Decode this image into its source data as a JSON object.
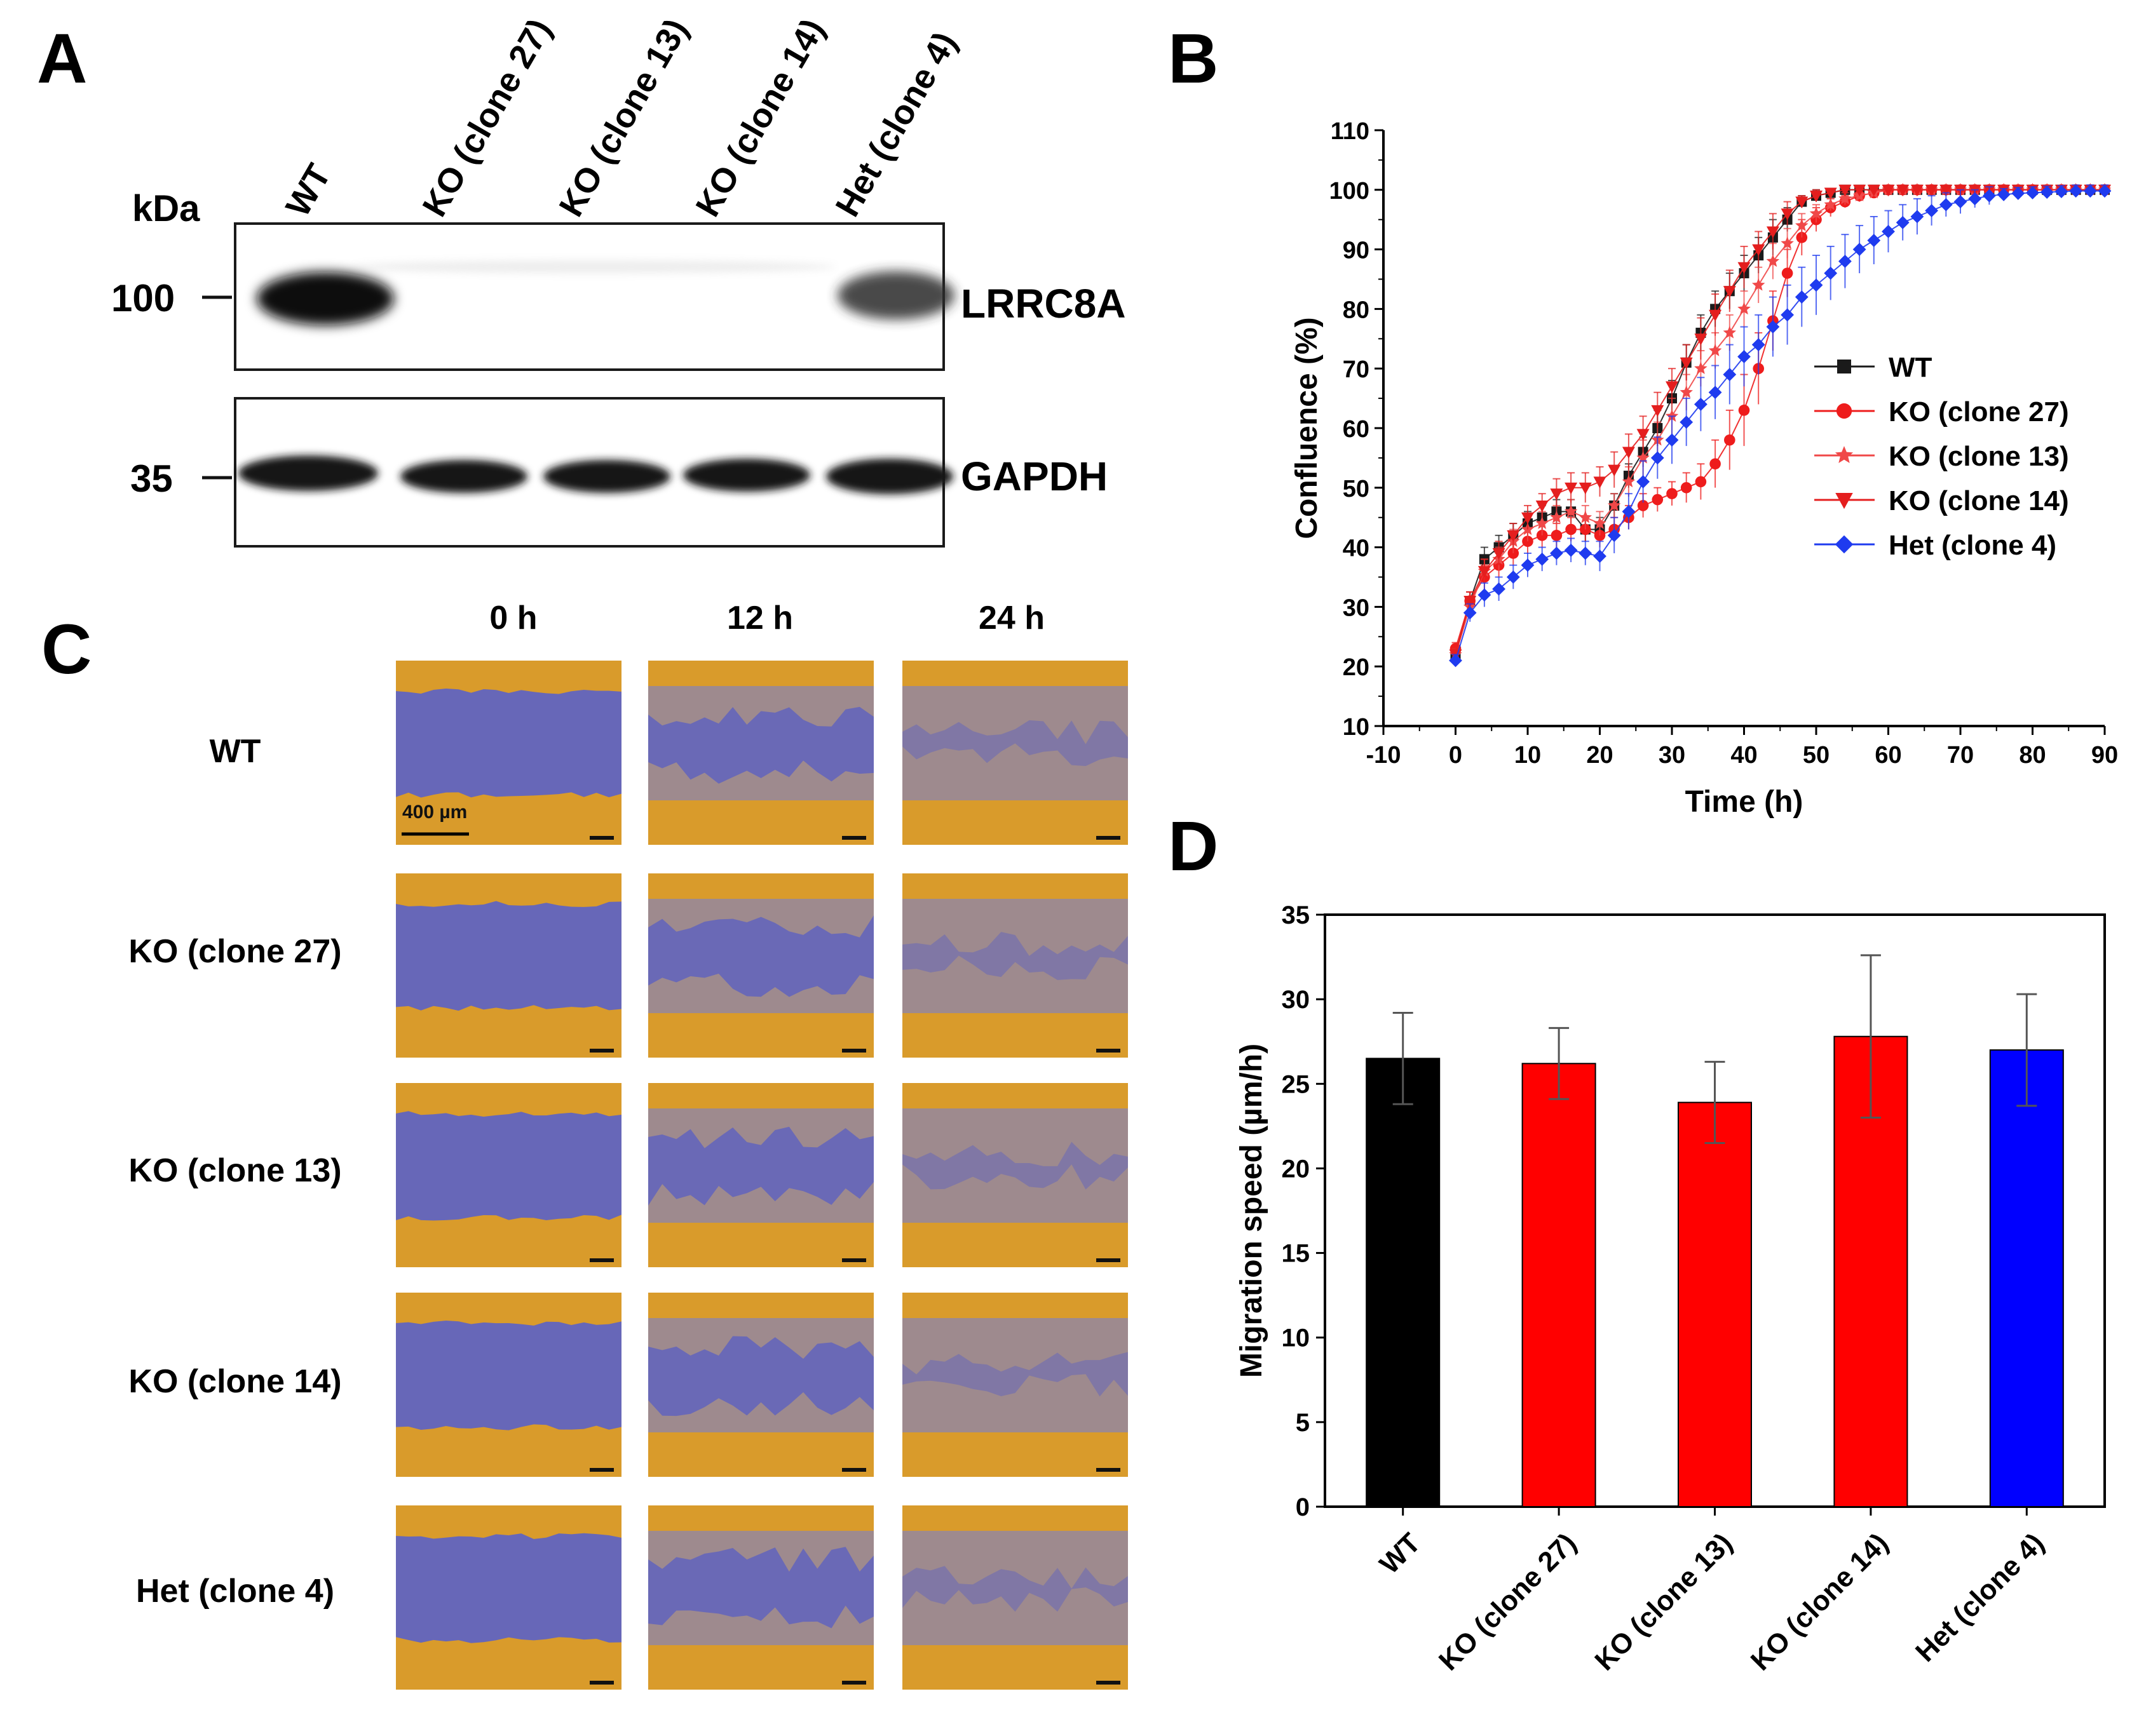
{
  "panels": {
    "A": {
      "letter": "A",
      "lane_labels": [
        "WT",
        "KO (clone 27)",
        "KO (clone 13)",
        "KO (clone 14)",
        "Het (clone 4)"
      ],
      "kda_label": "kDa",
      "markers": [
        "100",
        "35"
      ],
      "proteins": [
        "LRRC8A",
        "GAPDH"
      ]
    },
    "B": {
      "letter": "B"
    },
    "C": {
      "letter": "C",
      "time_labels": [
        "0 h",
        "12 h",
        "24 h"
      ],
      "row_labels": [
        "WT",
        "KO (clone 27)",
        "KO (clone 13)",
        "KO (clone 14)",
        "Het (clone 4)"
      ],
      "scale_bar": "400 µm"
    },
    "D": {
      "letter": "D"
    }
  },
  "chart_data": [
    {
      "id": "B",
      "type": "line",
      "xlabel": "Time (h)",
      "ylabel": "Confluence (%)",
      "xlim": [
        -10,
        90
      ],
      "ylim": [
        10,
        110
      ],
      "xticks": [
        -10,
        0,
        10,
        20,
        30,
        40,
        50,
        60,
        70,
        80,
        90
      ],
      "yticks": [
        10,
        20,
        30,
        40,
        50,
        60,
        70,
        80,
        90,
        100,
        110
      ],
      "legend_position": "right-middle",
      "x": [
        0,
        2,
        4,
        6,
        8,
        10,
        12,
        14,
        16,
        18,
        20,
        22,
        24,
        26,
        28,
        30,
        32,
        34,
        36,
        38,
        40,
        42,
        44,
        46,
        48,
        50,
        52,
        54,
        56,
        58,
        60,
        62,
        64,
        66,
        68,
        70,
        72,
        74,
        76,
        78,
        80,
        82,
        84,
        86,
        88,
        90
      ],
      "series": [
        {
          "name": "WT",
          "color": "#1a1a1a",
          "marker": "square",
          "values": [
            22,
            31,
            38,
            40,
            42,
            44,
            45,
            46,
            46,
            43,
            43,
            47,
            52,
            56,
            60,
            65,
            71,
            76,
            80,
            83,
            86,
            89,
            92,
            95,
            98,
            99,
            99.5,
            100,
            100,
            100,
            100,
            100,
            100,
            100,
            100,
            100,
            100,
            100,
            100,
            100,
            100,
            100,
            100,
            100,
            100,
            100
          ],
          "error": [
            1,
            1.5,
            2,
            2,
            2,
            2,
            2,
            2,
            2,
            2,
            2,
            2,
            2,
            2.5,
            3,
            3,
            3,
            3,
            3,
            3,
            3,
            3,
            3,
            2,
            1,
            1,
            0.5,
            0.5,
            0.3,
            0.3,
            0.3,
            0.3,
            0.3,
            0.3,
            0.3,
            0.3,
            0.3,
            0.3,
            0.3,
            0.3,
            0.3,
            0.3,
            0.3,
            0.3,
            0.3,
            0.3
          ]
        },
        {
          "name": "KO (clone 27)",
          "color": "#ee1c1c",
          "marker": "circle",
          "values": [
            23,
            31,
            35,
            37,
            39,
            41,
            42,
            42,
            43,
            43,
            42,
            43,
            45,
            47,
            48,
            49,
            50,
            51,
            54,
            58,
            63,
            70,
            78,
            86,
            92,
            95,
            97,
            98,
            99,
            99.5,
            100,
            100,
            100,
            100,
            100,
            100,
            100,
            100,
            100,
            100,
            100,
            100,
            100,
            100,
            100,
            100
          ],
          "error": [
            1,
            1.5,
            2,
            2,
            2,
            2,
            2,
            2,
            2,
            2,
            2,
            2,
            2,
            2,
            2,
            2,
            2.5,
            3,
            4,
            5,
            6,
            6,
            5,
            4,
            3,
            2,
            1.5,
            1,
            1,
            0.5,
            0.3,
            0.3,
            0.3,
            0.3,
            0.3,
            0.3,
            0.3,
            0.3,
            0.3,
            0.3,
            0.3,
            0.3,
            0.3,
            0.3,
            0.3,
            0.3
          ]
        },
        {
          "name": "KO (clone 13)",
          "color": "#f04848",
          "marker": "star",
          "values": [
            22,
            30,
            36,
            38,
            41,
            43,
            44,
            45,
            46,
            45,
            44,
            47,
            51,
            55,
            58,
            62,
            66,
            70,
            73,
            76,
            80,
            84,
            88,
            91,
            94,
            96,
            97.5,
            98.5,
            99,
            99.5,
            100,
            100,
            100,
            100,
            100,
            100,
            100,
            100,
            100,
            100,
            100,
            100,
            100,
            100,
            100,
            100
          ],
          "error": [
            1,
            1.5,
            2,
            2,
            2,
            2,
            2,
            2,
            2,
            2,
            2,
            2,
            2.5,
            3,
            3,
            3,
            3,
            3,
            3,
            3,
            3,
            3,
            3,
            2.5,
            2,
            1.5,
            1,
            1,
            0.5,
            0.5,
            0.3,
            0.3,
            0.3,
            0.3,
            0.3,
            0.3,
            0.3,
            0.3,
            0.3,
            0.3,
            0.3,
            0.3,
            0.3,
            0.3,
            0.3,
            0.3
          ]
        },
        {
          "name": "KO (clone 14)",
          "color": "#e41e1e",
          "marker": "triangle-down",
          "values": [
            22,
            31,
            36,
            39,
            42,
            45,
            47,
            49,
            50,
            50,
            51,
            53,
            56,
            59,
            63,
            67,
            71,
            75,
            79,
            83,
            87,
            90,
            93,
            96,
            98,
            99,
            99.5,
            100,
            100,
            100,
            100,
            100,
            100,
            100,
            100,
            100,
            100,
            100,
            100,
            100,
            100,
            100,
            100,
            100,
            100,
            100
          ],
          "error": [
            1,
            1.5,
            2,
            2,
            2,
            2,
            2,
            2.5,
            2.5,
            2.5,
            2.5,
            3,
            3,
            3,
            3,
            3,
            3,
            3.5,
            3.5,
            3.5,
            3.5,
            3,
            3,
            2,
            1,
            1,
            0.5,
            0.5,
            0.3,
            0.3,
            0.3,
            0.3,
            0.3,
            0.3,
            0.3,
            0.3,
            0.3,
            0.3,
            0.3,
            0.3,
            0.3,
            0.3,
            0.3,
            0.3,
            0.3,
            0.3
          ]
        },
        {
          "name": "Het (clone 4)",
          "color": "#1f3bef",
          "marker": "diamond",
          "values": [
            21,
            29,
            32,
            33,
            35,
            37,
            38,
            39,
            39.5,
            39,
            38.5,
            42,
            46,
            51,
            55,
            58,
            61,
            64,
            66,
            69,
            72,
            74,
            77,
            79,
            82,
            84,
            86,
            88,
            90,
            91.5,
            93,
            94.5,
            95.5,
            96.5,
            97.5,
            98,
            98.5,
            99,
            99.2,
            99.4,
            99.5,
            99.6,
            99.7,
            99.8,
            99.8,
            99.8
          ],
          "error": [
            1,
            1.5,
            2,
            2,
            2,
            2,
            2,
            2,
            2,
            2,
            2.5,
            3,
            3,
            3.5,
            3.5,
            4,
            4,
            4.5,
            4.5,
            5,
            5,
            5,
            5,
            5,
            5,
            5,
            4.5,
            4.5,
            4,
            4,
            3.5,
            3,
            3,
            2.5,
            2,
            2,
            1.5,
            1.5,
            1,
            1,
            1,
            1,
            1,
            1,
            1,
            1
          ]
        }
      ]
    },
    {
      "id": "D",
      "type": "bar",
      "ylabel": "Migration speed (µm/h)",
      "xlabel": "",
      "ylim": [
        0,
        35
      ],
      "yticks": [
        0,
        5,
        10,
        15,
        20,
        25,
        30,
        35
      ],
      "categories": [
        "WT",
        "KO (clone 27)",
        "KO (clone 13)",
        "KO (clone 14)",
        "Het (clone 4)"
      ],
      "values": [
        26.5,
        26.2,
        23.9,
        27.8,
        27.0
      ],
      "errors": [
        2.7,
        2.1,
        2.4,
        4.8,
        3.3
      ],
      "colors": [
        "#000000",
        "#ff0000",
        "#ff0000",
        "#ff0000",
        "#0000ff"
      ]
    }
  ]
}
